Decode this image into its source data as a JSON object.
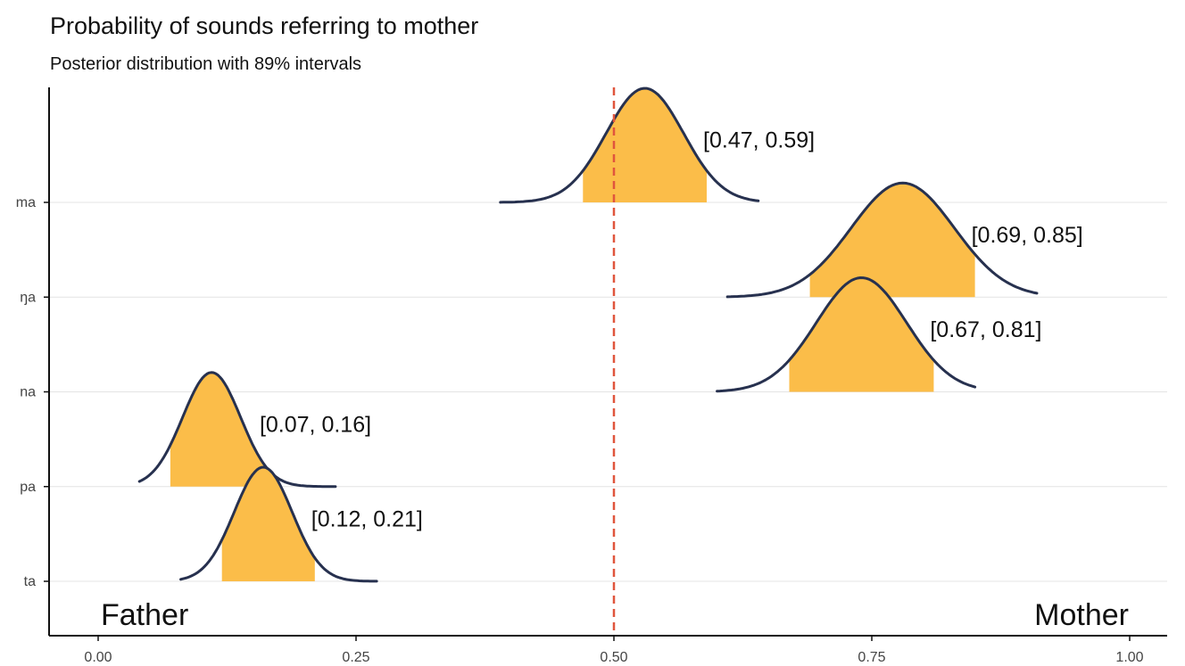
{
  "chart_data": {
    "type": "area",
    "title": "Probability of sounds referring to mother",
    "subtitle": "Posterior distribution with 89% intervals",
    "xlabel": "",
    "ylabel": "",
    "xlim": [
      0,
      1
    ],
    "x_ticks": [
      "0.00",
      "0.25",
      "0.50",
      "0.75",
      "1.00"
    ],
    "reference_line": 0.5,
    "left_annotation": "Father",
    "right_annotation": "Mother",
    "series": [
      {
        "category": "ma",
        "interval_label": "[0.47, 0.59]",
        "lower": 0.47,
        "upper": 0.59,
        "mode": 0.53,
        "range": [
          0.39,
          0.64
        ]
      },
      {
        "category": "ŋa",
        "interval_label": "[0.69, 0.85]",
        "lower": 0.69,
        "upper": 0.85,
        "mode": 0.78,
        "range": [
          0.61,
          0.91
        ]
      },
      {
        "category": "na",
        "interval_label": "[0.67, 0.81]",
        "lower": 0.67,
        "upper": 0.81,
        "mode": 0.74,
        "range": [
          0.6,
          0.85
        ]
      },
      {
        "category": "pa",
        "interval_label": "[0.07, 0.16]",
        "lower": 0.07,
        "upper": 0.16,
        "mode": 0.11,
        "range": [
          0.04,
          0.23
        ]
      },
      {
        "category": "ta",
        "interval_label": "[0.12, 0.21]",
        "lower": 0.12,
        "upper": 0.21,
        "mode": 0.16,
        "range": [
          0.08,
          0.27
        ]
      }
    ],
    "grid": "horizontal",
    "colors": {
      "interval_fill": "#fbbd49",
      "density_line": "#27314f",
      "reference_line": "#e0553d"
    }
  }
}
